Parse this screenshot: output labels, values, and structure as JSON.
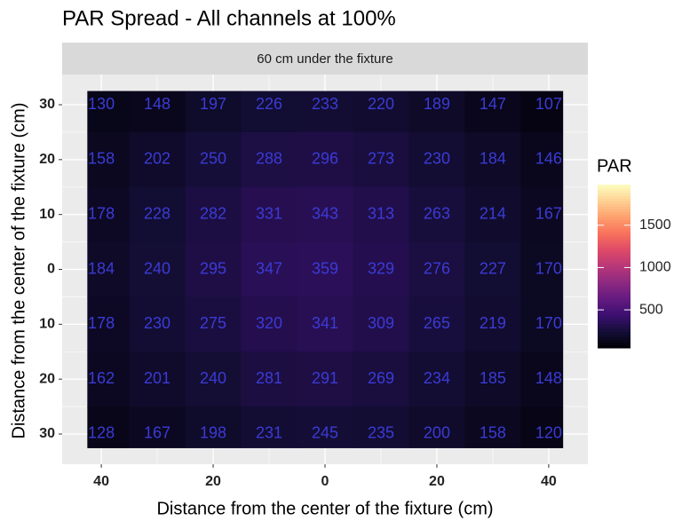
{
  "chart_data": {
    "type": "heatmap",
    "title": "PAR Spread - All channels at 100%",
    "strip": "60 cm under the fixture",
    "xlabel": "Distance from the center of the fixture (cm)",
    "ylabel": "Distance from the center of the fixture (cm)",
    "x": [
      -40,
      -30,
      -20,
      -10,
      0,
      10,
      20,
      30,
      40
    ],
    "y": [
      30,
      20,
      10,
      0,
      -10,
      -20,
      -30
    ],
    "values": [
      [
        130,
        148,
        197,
        226,
        233,
        220,
        189,
        147,
        107
      ],
      [
        158,
        202,
        250,
        288,
        296,
        273,
        230,
        184,
        146
      ],
      [
        178,
        228,
        282,
        331,
        343,
        313,
        263,
        214,
        167
      ],
      [
        184,
        240,
        295,
        347,
        359,
        329,
        276,
        227,
        170
      ],
      [
        178,
        230,
        275,
        320,
        341,
        309,
        265,
        219,
        170
      ],
      [
        162,
        201,
        240,
        281,
        291,
        269,
        234,
        185,
        148
      ],
      [
        128,
        167,
        198,
        231,
        245,
        235,
        200,
        158,
        120
      ]
    ],
    "xlim": [
      -47,
      47
    ],
    "xticks": [
      {
        "value": -40,
        "label": "40"
      },
      {
        "value": -20,
        "label": "20"
      },
      0,
      20,
      40
    ],
    "ylim": [
      -35.5,
      35.5
    ],
    "yticks": [
      {
        "value": -30,
        "label": "30"
      },
      {
        "value": -20,
        "label": "20"
      },
      {
        "value": -10,
        "label": "10"
      },
      0,
      10,
      20,
      30
    ],
    "grid": true,
    "label_color": "#3b3bd6",
    "colormap": "magma",
    "legend_title": "PAR",
    "clim": [
      50,
      1980
    ],
    "cticks": [
      500,
      1000,
      1500
    ]
  }
}
